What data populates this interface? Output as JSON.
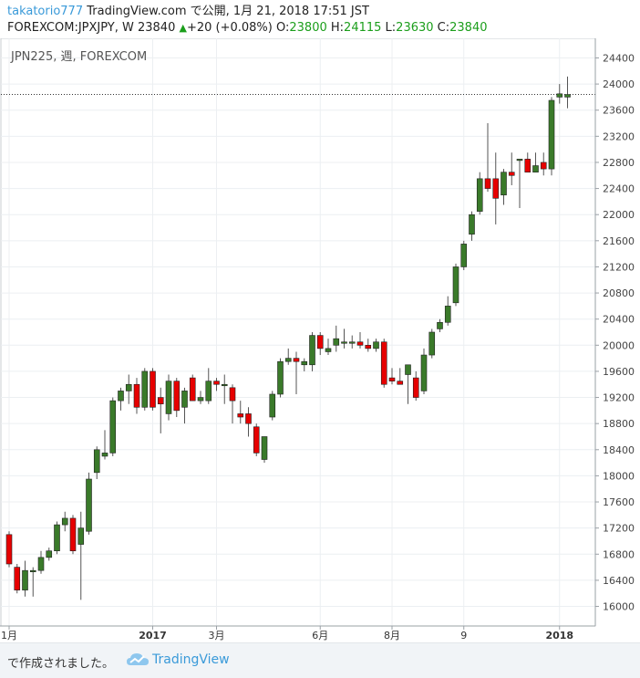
{
  "header": {
    "user": "takatorio777",
    "published": "TradingView.com で公開, 1月 21, 2018 17:51 JST",
    "symbol_line": "FOREXCOM:JPXJPY, W 23840",
    "change": "+20 (+0.08%)",
    "o_label": "O:",
    "o_value": "23800",
    "h_label": "H:",
    "h_value": "24115",
    "l_label": "L:",
    "l_value": "23630",
    "c_label": "C:",
    "c_value": "23840"
  },
  "colors": {
    "up": "#3a7a2a",
    "down": "#e60000",
    "accent": "#3a9ad9",
    "ohlc_green": "#1b9e1b"
  },
  "footer": {
    "text": "で作成されました。",
    "brand": "TradingView",
    "logo_icon": "tradingview-cloud-icon"
  },
  "chart_data": {
    "type": "candlestick",
    "title": "JPN225, 週, FOREXCOM",
    "ylim": [
      15700,
      24700
    ],
    "yticks": [
      16000,
      16400,
      16800,
      17200,
      17600,
      18000,
      18400,
      18800,
      19200,
      19600,
      20000,
      20400,
      20800,
      21200,
      21600,
      22000,
      22400,
      22800,
      23200,
      23600,
      24000,
      24400
    ],
    "xticks": [
      {
        "label": "1月",
        "index": 0
      },
      {
        "label": "2017",
        "index": 18
      },
      {
        "label": "3月",
        "index": 26
      },
      {
        "label": "6月",
        "index": 39
      },
      {
        "label": "8月",
        "index": 48
      },
      {
        "label": "9",
        "index": 57
      },
      {
        "label": "2018",
        "index": 69
      }
    ],
    "last_price": 23840,
    "grid": true,
    "candles": [
      {
        "o": 17100,
        "h": 17150,
        "l": 16600,
        "c": 16650
      },
      {
        "o": 16600,
        "h": 16650,
        "l": 16200,
        "c": 16250
      },
      {
        "o": 16250,
        "h": 16700,
        "l": 16150,
        "c": 16550
      },
      {
        "o": 16550,
        "h": 16600,
        "l": 16150,
        "c": 16550
      },
      {
        "o": 16550,
        "h": 16850,
        "l": 16500,
        "c": 16750
      },
      {
        "o": 16750,
        "h": 16900,
        "l": 16700,
        "c": 16850
      },
      {
        "o": 16850,
        "h": 17300,
        "l": 16800,
        "c": 17250
      },
      {
        "o": 17250,
        "h": 17450,
        "l": 17150,
        "c": 17350
      },
      {
        "o": 17350,
        "h": 17400,
        "l": 16800,
        "c": 16850
      },
      {
        "o": 16950,
        "h": 17450,
        "l": 16100,
        "c": 17200
      },
      {
        "o": 17150,
        "h": 18050,
        "l": 17100,
        "c": 17950
      },
      {
        "o": 18050,
        "h": 18450,
        "l": 17950,
        "c": 18400
      },
      {
        "o": 18300,
        "h": 18700,
        "l": 18250,
        "c": 18350
      },
      {
        "o": 18350,
        "h": 19200,
        "l": 18300,
        "c": 19150
      },
      {
        "o": 19150,
        "h": 19350,
        "l": 19000,
        "c": 19300
      },
      {
        "o": 19300,
        "h": 19550,
        "l": 19100,
        "c": 19400
      },
      {
        "o": 19400,
        "h": 19500,
        "l": 18950,
        "c": 19050
      },
      {
        "o": 19050,
        "h": 19650,
        "l": 19000,
        "c": 19600
      },
      {
        "o": 19600,
        "h": 19650,
        "l": 19000,
        "c": 19050
      },
      {
        "o": 19200,
        "h": 19350,
        "l": 18650,
        "c": 19100
      },
      {
        "o": 18950,
        "h": 19550,
        "l": 18850,
        "c": 19450
      },
      {
        "o": 19450,
        "h": 19500,
        "l": 18900,
        "c": 19000
      },
      {
        "o": 19050,
        "h": 19350,
        "l": 18800,
        "c": 19300
      },
      {
        "o": 19500,
        "h": 19550,
        "l": 19150,
        "c": 19150
      },
      {
        "o": 19150,
        "h": 19300,
        "l": 19100,
        "c": 19200
      },
      {
        "o": 19150,
        "h": 19650,
        "l": 19100,
        "c": 19450
      },
      {
        "o": 19450,
        "h": 19500,
        "l": 19300,
        "c": 19400
      },
      {
        "o": 19400,
        "h": 19550,
        "l": 19100,
        "c": 19400
      },
      {
        "o": 19350,
        "h": 19400,
        "l": 18800,
        "c": 19150
      },
      {
        "o": 18950,
        "h": 19150,
        "l": 18800,
        "c": 18900
      },
      {
        "o": 18950,
        "h": 19050,
        "l": 18600,
        "c": 18800
      },
      {
        "o": 18750,
        "h": 18800,
        "l": 18300,
        "c": 18350
      },
      {
        "o": 18250,
        "h": 18600,
        "l": 18200,
        "c": 18600
      },
      {
        "o": 18900,
        "h": 19300,
        "l": 18850,
        "c": 19250
      },
      {
        "o": 19250,
        "h": 19800,
        "l": 19200,
        "c": 19750
      },
      {
        "o": 19750,
        "h": 19950,
        "l": 19700,
        "c": 19800
      },
      {
        "o": 19800,
        "h": 19900,
        "l": 19250,
        "c": 19750
      },
      {
        "o": 19700,
        "h": 19800,
        "l": 19600,
        "c": 19750
      },
      {
        "o": 19700,
        "h": 20200,
        "l": 19600,
        "c": 20150
      },
      {
        "o": 20150,
        "h": 20200,
        "l": 19850,
        "c": 19950
      },
      {
        "o": 19900,
        "h": 20100,
        "l": 19850,
        "c": 19950
      },
      {
        "o": 20000,
        "h": 20300,
        "l": 19900,
        "c": 20100
      },
      {
        "o": 20050,
        "h": 20250,
        "l": 19950,
        "c": 20050
      },
      {
        "o": 20050,
        "h": 20150,
        "l": 19950,
        "c": 20050
      },
      {
        "o": 20050,
        "h": 20200,
        "l": 19950,
        "c": 20000
      },
      {
        "o": 20000,
        "h": 20100,
        "l": 19900,
        "c": 19950
      },
      {
        "o": 19950,
        "h": 20100,
        "l": 19900,
        "c": 20050
      },
      {
        "o": 20050,
        "h": 20100,
        "l": 19350,
        "c": 19400
      },
      {
        "o": 19500,
        "h": 19650,
        "l": 19400,
        "c": 19450
      },
      {
        "o": 19450,
        "h": 19650,
        "l": 19400,
        "c": 19400
      },
      {
        "o": 19550,
        "h": 19700,
        "l": 19100,
        "c": 19700
      },
      {
        "o": 19500,
        "h": 19600,
        "l": 19150,
        "c": 19200
      },
      {
        "o": 19300,
        "h": 19950,
        "l": 19250,
        "c": 19850
      },
      {
        "o": 19850,
        "h": 20250,
        "l": 19800,
        "c": 20200
      },
      {
        "o": 20250,
        "h": 20400,
        "l": 20200,
        "c": 20350
      },
      {
        "o": 20350,
        "h": 20750,
        "l": 20300,
        "c": 20600
      },
      {
        "o": 20650,
        "h": 21250,
        "l": 20600,
        "c": 21200
      },
      {
        "o": 21200,
        "h": 21600,
        "l": 21150,
        "c": 21550
      },
      {
        "o": 21700,
        "h": 22050,
        "l": 21600,
        "c": 22000
      },
      {
        "o": 22050,
        "h": 22650,
        "l": 22000,
        "c": 22550
      },
      {
        "o": 22550,
        "h": 23400,
        "l": 22350,
        "c": 22400
      },
      {
        "o": 22550,
        "h": 22950,
        "l": 21850,
        "c": 22250
      },
      {
        "o": 22300,
        "h": 22700,
        "l": 22150,
        "c": 22650
      },
      {
        "o": 22650,
        "h": 22950,
        "l": 22450,
        "c": 22600
      },
      {
        "o": 22850,
        "h": 22850,
        "l": 22100,
        "c": 22850
      },
      {
        "o": 22850,
        "h": 22950,
        "l": 22650,
        "c": 22650
      },
      {
        "o": 22650,
        "h": 22950,
        "l": 22650,
        "c": 22750
      },
      {
        "o": 22800,
        "h": 22950,
        "l": 22600,
        "c": 22700
      },
      {
        "o": 22700,
        "h": 23800,
        "l": 22600,
        "c": 23750
      },
      {
        "o": 23800,
        "h": 24000,
        "l": 23700,
        "c": 23850
      },
      {
        "o": 23800,
        "h": 24115,
        "l": 23630,
        "c": 23840
      }
    ]
  }
}
